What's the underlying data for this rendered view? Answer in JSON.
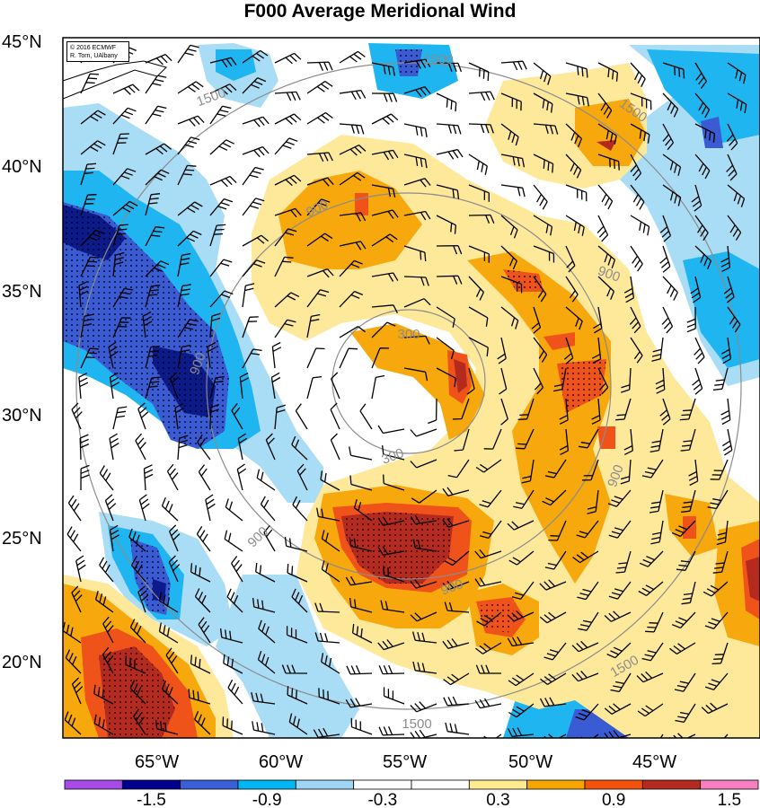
{
  "title": "F000 Average Meridional Wind",
  "copyright": {
    "line1": "© 2016 ECMWF",
    "line2": "R. Torn, UAlbany"
  },
  "latitude_labels": [
    "45°N",
    "40°N",
    "35°N",
    "30°N",
    "25°N",
    "20°N"
  ],
  "longitude_labels": [
    "65°W",
    "60°W",
    "55°W",
    "50°W",
    "45°W"
  ],
  "contour_labels": [
    "300",
    "300",
    "900",
    "900",
    "900",
    "900",
    "900",
    "900",
    "1500",
    "1500",
    "1500",
    "1500",
    "1500"
  ],
  "colorbar": {
    "labels": [
      "-1.5",
      "-0.9",
      "-0.3",
      "0.3",
      "0.9",
      "1.5"
    ],
    "colors": [
      "#a64be8",
      "#00008f",
      "#3a5fd6",
      "#00b7f4",
      "#9ed4f4",
      "#ffffff",
      "#ffffff",
      "#feeb8f",
      "#f7a600",
      "#f5520e",
      "#b52a1e",
      "#f67fbf"
    ]
  },
  "palette": {
    "positive_light": "#fee99a",
    "positive_mid": "#f7a80c",
    "positive_strong": "#f0531a",
    "positive_max": "#b52a1e",
    "negative_light": "#a9dcf5",
    "negative_mid": "#1eb5f0",
    "negative_strong": "#3a5bd3",
    "negative_max": "#0c1a8a",
    "contour": "#8c8c8c"
  }
}
